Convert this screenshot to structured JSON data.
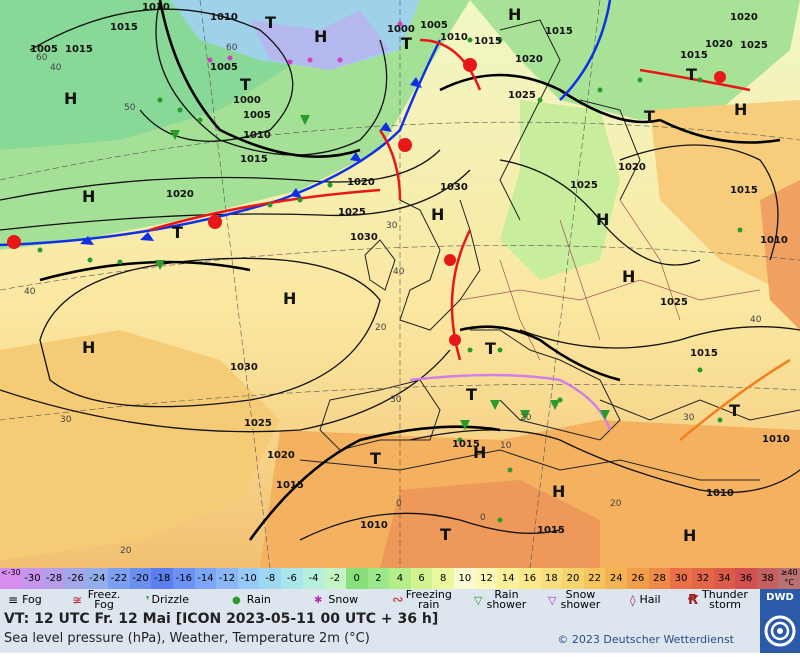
{
  "isobar_labels": [
    "1010",
    "1015",
    "1010",
    "1005",
    "1000",
    "1005",
    "1010",
    "1015",
    "1020",
    "1025",
    "1030",
    "1000",
    "1005",
    "1010",
    "1015",
    "1020",
    "1025",
    "1030",
    "1020",
    "1015",
    "1005",
    "1015",
    "1020",
    "1025",
    "1030",
    "1025",
    "1020",
    "1015",
    "1010",
    "1020",
    "1015",
    "1025",
    "1015",
    "1010",
    "1015",
    "1010",
    "1015",
    "1010",
    "1015",
    "1020",
    "1025"
  ],
  "pressure_centers": [
    "H",
    "H",
    "H",
    "H",
    "H",
    "H",
    "H",
    "H",
    "H",
    "H",
    "H",
    "H",
    "H",
    "T",
    "T",
    "T",
    "T",
    "T",
    "T",
    "T",
    "T",
    "T",
    "T",
    "T"
  ],
  "temp_labels": [
    "40",
    "30",
    "20",
    "50",
    "40",
    "60",
    "60",
    "40",
    "30",
    "20",
    "0",
    "30",
    "20",
    "40",
    "30",
    "20",
    "10",
    "0"
  ],
  "scale": {
    "values": [
      "<-30",
      "-30",
      "-28",
      "-26",
      "-24",
      "-22",
      "-20",
      "-18",
      "-16",
      "-14",
      "-12",
      "-10",
      "-8",
      "-6",
      "-4",
      "-2",
      "0",
      "2",
      "4",
      "6",
      "8",
      "10",
      "12",
      "14",
      "16",
      "18",
      "20",
      "22",
      "24",
      "26",
      "28",
      "30",
      "32",
      "34",
      "36",
      "38",
      "≥40 °C"
    ],
    "colors": [
      "#d78cf0",
      "#c596ec",
      "#b49eea",
      "#a4a6ea",
      "#93aeea",
      "#7d9ff0",
      "#6b8ff0",
      "#5b80ee",
      "#6b92f4",
      "#7ea6f6",
      "#8bb7f7",
      "#97c9f7",
      "#9ed8f2",
      "#a8e6ec",
      "#b6f0dc",
      "#c4f3c4",
      "#88e07a",
      "#9ae88a",
      "#b4ee88",
      "#d2f48e",
      "#eaf89e",
      "#fafad2",
      "#fdf8b5",
      "#fdf09a",
      "#fbe88a",
      "#f9de80",
      "#f7d36d",
      "#f5c45c",
      "#f4b352",
      "#f29e4a",
      "#ef8a4a",
      "#ea7048",
      "#e46646",
      "#dc5a48",
      "#d05050",
      "#c46060",
      "#b87070"
    ]
  },
  "legend": {
    "fog": "Fog",
    "freezing_fog": "Freez. Fog",
    "drizzle": "Drizzle",
    "rain": "Rain",
    "snow": "Snow",
    "freezing_rain": "Freezing rain",
    "rain_shower": "Rain shower",
    "snow_shower": "Snow shower",
    "hail": "Hail",
    "thunderstorm": "Thunder storm"
  },
  "footer": {
    "valid_time": "VT: 12 UTC Fr.  12 Mai [ICON 2023-05-11  00 UTC + 36 h]",
    "subtitle": "Sea level pressure (hPa), Weather, Temperature 2m (°C)",
    "copyright": "© 2023 Deutscher Wetterdienst",
    "logo": "DWD"
  },
  "colors": {
    "cold_front": "#1030e8",
    "warm_front": "#e81818",
    "occlusion": "#d080e8",
    "trough": "#f08020"
  }
}
